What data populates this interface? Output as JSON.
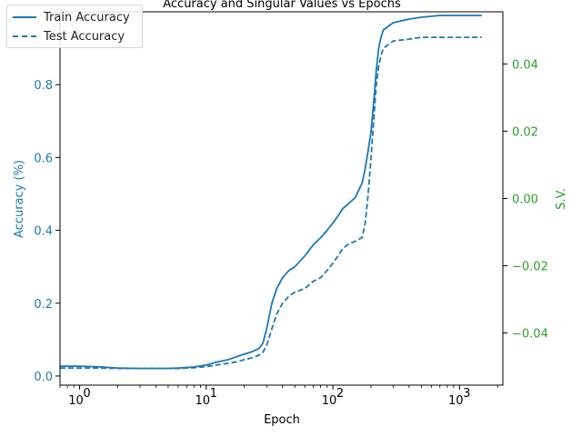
{
  "chart_data": {
    "type": "line",
    "title": "Accuracy and Singular Values vs Epochs",
    "xlabel": "Epoch",
    "ylabel": "Accuracy (%)",
    "y2label": "S.V.",
    "xscale": "log",
    "xlim": [
      0.7,
      2200
    ],
    "ylim": [
      -0.025,
      1.0
    ],
    "y2lim": [
      -0.0555,
      0.0555
    ],
    "xticks": [
      {
        "v": 1,
        "t": "10",
        "e": "0"
      },
      {
        "v": 10,
        "t": "10",
        "e": "1"
      },
      {
        "v": 100,
        "t": "10",
        "e": "2"
      },
      {
        "v": 1000,
        "t": "10",
        "e": "3"
      }
    ],
    "yticks": [
      "0.0",
      "0.2",
      "0.4",
      "0.6",
      "0.8"
    ],
    "y2ticks": [
      "−0.04",
      "−0.02",
      "0.00",
      "0.02",
      "0.04"
    ],
    "legend_position": "top-left",
    "grid": false,
    "colors": {
      "accuracy": "#1f77b4",
      "sv": "#2ca02c",
      "axis": "#000000"
    },
    "series": [
      {
        "name": "Train Accuracy",
        "style": "solid",
        "x": [
          0.7,
          1,
          1.5,
          2,
          3,
          4,
          5,
          6,
          8,
          10,
          12,
          15,
          18,
          20,
          23,
          26,
          28,
          30,
          33,
          36,
          40,
          45,
          50,
          60,
          70,
          80,
          90,
          100,
          110,
          120,
          130,
          150,
          170,
          180,
          190,
          200,
          210,
          220,
          230,
          240,
          250,
          300,
          400,
          500,
          700,
          1000,
          1500
        ],
        "y": [
          0.027,
          0.027,
          0.025,
          0.022,
          0.021,
          0.021,
          0.021,
          0.022,
          0.025,
          0.03,
          0.038,
          0.045,
          0.055,
          0.06,
          0.067,
          0.075,
          0.09,
          0.13,
          0.2,
          0.24,
          0.27,
          0.29,
          0.3,
          0.33,
          0.36,
          0.38,
          0.4,
          0.42,
          0.44,
          0.46,
          0.47,
          0.49,
          0.53,
          0.57,
          0.62,
          0.67,
          0.75,
          0.84,
          0.9,
          0.93,
          0.95,
          0.97,
          0.98,
          0.985,
          0.99,
          0.99,
          0.99
        ]
      },
      {
        "name": "Test Accuracy",
        "style": "dashed",
        "x": [
          0.7,
          1,
          1.5,
          2,
          3,
          4,
          5,
          6,
          8,
          10,
          12,
          15,
          18,
          20,
          23,
          26,
          28,
          30,
          33,
          36,
          40,
          45,
          50,
          60,
          70,
          80,
          90,
          100,
          110,
          120,
          130,
          150,
          170,
          180,
          190,
          200,
          210,
          220,
          230,
          240,
          250,
          300,
          400,
          500,
          700,
          1000,
          1500
        ],
        "y": [
          0.022,
          0.022,
          0.022,
          0.021,
          0.021,
          0.021,
          0.021,
          0.021,
          0.023,
          0.026,
          0.03,
          0.035,
          0.04,
          0.045,
          0.05,
          0.057,
          0.065,
          0.085,
          0.13,
          0.17,
          0.2,
          0.22,
          0.23,
          0.24,
          0.26,
          0.27,
          0.29,
          0.31,
          0.33,
          0.35,
          0.36,
          0.37,
          0.38,
          0.42,
          0.5,
          0.6,
          0.7,
          0.8,
          0.85,
          0.88,
          0.9,
          0.92,
          0.925,
          0.93,
          0.93,
          0.93,
          0.93
        ]
      }
    ]
  }
}
